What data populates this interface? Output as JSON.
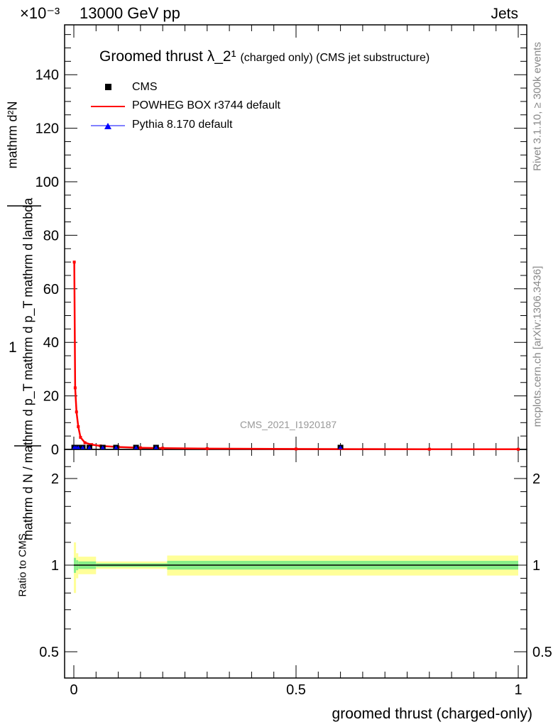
{
  "header": {
    "left": "13000 GeV pp",
    "right": "Jets",
    "exponent": "×10⁻³"
  },
  "side": {
    "rivet": "Rivet 3.1.10, ≥ 300k events",
    "mcplots": "mcplots.cern.ch [arXiv:1306.3436]"
  },
  "watermark": "CMS_2021_I1920187",
  "colors": {
    "data": "#000000",
    "powheg": "#ff0000",
    "pythia": "#0000ff",
    "band_inner": "#88ee88",
    "band_outer": "#ffff99"
  },
  "chart_data": [
    {
      "type": "line",
      "title": "Groomed thrust λ_2¹",
      "title_suffix": "(charged only) (CMS jet substructure)",
      "ylabel_num": "1",
      "ylabel_den": "mathrm d N / mathrm d p_T mathrm d p_T mathrm d lambda",
      "ylabel_top": "mathrm d²N",
      "xlim": [
        0,
        1
      ],
      "ylim": [
        0,
        158
      ],
      "yticks": [
        0,
        20,
        40,
        60,
        80,
        100,
        120,
        140
      ],
      "legend": [
        "CMS",
        "POWHEG BOX r3744 default",
        "Pythia 8.170 default"
      ],
      "series": [
        {
          "name": "CMS",
          "x": [
            0.001,
            0.005,
            0.01,
            0.02,
            0.035,
            0.065,
            0.095,
            0.14,
            0.185,
            0.6
          ],
          "y": [
            0.4,
            0.4,
            0.4,
            0.4,
            0.4,
            0.4,
            0.4,
            0.4,
            0.4,
            0.4
          ]
        },
        {
          "name": "POWHEG BOX r3744 default",
          "x": [
            0.001,
            0.003,
            0.006,
            0.01,
            0.015,
            0.025,
            0.04,
            0.06,
            0.1,
            0.15,
            0.2,
            0.3,
            0.5,
            0.8,
            1.0
          ],
          "y": [
            70,
            23,
            14,
            8.5,
            4.5,
            2.5,
            1.8,
            1.3,
            0.9,
            0.6,
            0.45,
            0.3,
            0.15,
            0.08,
            0.05
          ]
        },
        {
          "name": "Pythia 8.170 default",
          "x": [
            0.001,
            0.005,
            0.01,
            0.02,
            0.035,
            0.065,
            0.095,
            0.14,
            0.185,
            0.6
          ],
          "y": [
            0.4,
            0.4,
            0.4,
            0.4,
            0.4,
            0.4,
            0.4,
            0.4,
            0.4,
            0.4
          ]
        }
      ]
    },
    {
      "type": "line",
      "ylabel": "Ratio to CMS",
      "xlabel": "groomed thrust (charged-only)",
      "ylim": [
        0.4,
        2.4
      ],
      "yscale": "log",
      "yticks": [
        0.5,
        1,
        2
      ],
      "xticks": [
        0,
        0.5,
        1
      ],
      "bins": [
        [
          0,
          0.005
        ],
        [
          0.005,
          0.01
        ],
        [
          0.01,
          0.05
        ],
        [
          0.05,
          0.21
        ],
        [
          0.21,
          1
        ]
      ],
      "inner": [
        0.06,
        0.04,
        0.03,
        0.015,
        0.035
      ],
      "outer": [
        0.2,
        0.1,
        0.07,
        0.03,
        0.08
      ]
    }
  ]
}
